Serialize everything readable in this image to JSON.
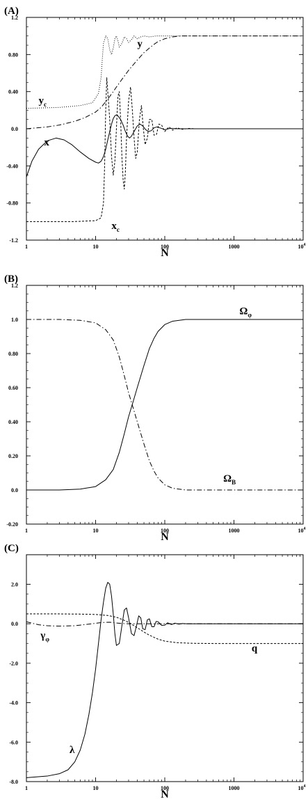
{
  "chart_data": [
    {
      "panel": "(A)",
      "type": "line",
      "xlabel": "N",
      "x_scale": "log",
      "xlim": [
        1,
        10000
      ],
      "ylim": [
        -1.2,
        1.2
      ],
      "x_ticks": [
        {
          "value": 1,
          "label": "1"
        },
        {
          "value": 10,
          "label": "10"
        },
        {
          "value": 100,
          "label": "100"
        },
        {
          "value": 1000,
          "label": "1000"
        },
        {
          "value": 10000,
          "label": "10",
          "sup": "4"
        }
      ],
      "y_ticks": [
        {
          "value": 1.2,
          "label": "1.2"
        },
        {
          "value": 0.8,
          "label": "0.80"
        },
        {
          "value": 0.4,
          "label": "0.40"
        },
        {
          "value": 0.0,
          "label": "0.0"
        },
        {
          "value": -0.4,
          "label": "-0.40"
        },
        {
          "value": -0.8,
          "label": "-0.80"
        },
        {
          "value": -1.2,
          "label": "-1.2"
        }
      ],
      "series": [
        {
          "name": "x",
          "style": "solid",
          "x": [
            1,
            1.2,
            1.5,
            2,
            2.7,
            3.5,
            4.5,
            6,
            8,
            10,
            11,
            12,
            13,
            14,
            15,
            16,
            17,
            18,
            19,
            20,
            21,
            23,
            25,
            27,
            29,
            31,
            33,
            36,
            40,
            44,
            48,
            53,
            58,
            64,
            70,
            77,
            85,
            100,
            120,
            150,
            200,
            300,
            500,
            1000,
            10000
          ],
          "y": [
            -0.52,
            -0.35,
            -0.22,
            -0.13,
            -0.1,
            -0.12,
            -0.17,
            -0.25,
            -0.32,
            -0.36,
            -0.37,
            -0.35,
            -0.3,
            -0.22,
            -0.12,
            -0.03,
            0.05,
            0.11,
            0.14,
            0.15,
            0.14,
            0.1,
            0.04,
            -0.03,
            -0.08,
            -0.1,
            -0.08,
            -0.03,
            0.03,
            0.05,
            0.03,
            -0.01,
            -0.03,
            -0.02,
            0.01,
            0.02,
            0.01,
            -0.01,
            0.005,
            0,
            0,
            0,
            0,
            0,
            0
          ]
        },
        {
          "name": "x_c",
          "style": "dashed",
          "x": [
            1,
            2,
            5,
            10,
            12,
            13,
            13.5,
            14,
            14.5,
            15,
            16,
            17,
            18,
            19,
            20,
            21,
            22,
            23,
            24,
            25,
            26,
            27,
            28,
            30,
            32,
            34,
            36,
            38,
            40,
            43,
            46,
            49,
            52,
            56,
            60,
            65,
            70,
            76,
            82,
            90,
            100,
            115,
            130,
            150,
            180,
            220,
            270,
            330,
            400,
            500,
            1000,
            10000
          ],
          "y": [
            -1.0,
            -1.0,
            -1.0,
            -0.99,
            -0.96,
            -0.8,
            -0.4,
            0.2,
            0.55,
            0.4,
            0.1,
            -0.3,
            -0.5,
            -0.35,
            0.0,
            0.35,
            0.4,
            0.1,
            -0.3,
            -0.55,
            -0.65,
            -0.45,
            -0.1,
            0.3,
            0.45,
            0.2,
            -0.1,
            -0.32,
            -0.25,
            0.1,
            0.25,
            0.0,
            -0.17,
            -0.1,
            0.1,
            0.1,
            -0.07,
            -0.06,
            0.05,
            0.04,
            -0.03,
            0.02,
            -0.015,
            0.01,
            -0.006,
            0.004,
            0,
            0,
            0,
            0,
            0,
            0
          ]
        },
        {
          "name": "y",
          "style": "dashdot",
          "x": [
            1,
            2,
            3,
            5,
            7,
            10,
            12,
            15,
            18,
            20,
            25,
            30,
            40,
            50,
            60,
            70,
            80,
            100,
            130,
            170,
            250,
            400,
            1000,
            10000
          ],
          "y": [
            0.0,
            0.02,
            0.04,
            0.08,
            0.12,
            0.18,
            0.23,
            0.32,
            0.4,
            0.45,
            0.55,
            0.63,
            0.74,
            0.82,
            0.87,
            0.91,
            0.94,
            0.97,
            0.99,
            1.0,
            1.0,
            1.0,
            1.0,
            1.0
          ]
        },
        {
          "name": "y_c",
          "style": "dotted",
          "x": [
            1,
            3,
            6,
            9,
            11,
            12,
            12.5,
            13,
            14,
            15,
            16,
            17,
            18,
            19,
            20,
            21,
            22,
            24,
            26,
            28,
            30,
            33,
            36,
            40,
            45,
            50,
            60,
            75,
            100,
            1000,
            10000
          ],
          "y": [
            0.22,
            0.23,
            0.25,
            0.28,
            0.38,
            0.55,
            0.75,
            0.92,
            1.0,
            0.97,
            0.85,
            0.8,
            0.87,
            0.97,
            1.0,
            0.95,
            0.88,
            0.92,
            0.99,
            0.97,
            0.93,
            0.96,
            1.0,
            0.97,
            0.99,
            1.0,
            0.99,
            1.0,
            1.0,
            1.0,
            1.0
          ]
        }
      ],
      "annotations": [
        {
          "text": "y",
          "sub": "c",
          "x": 1.5,
          "y": 0.27
        },
        {
          "text": "y",
          "sub": "",
          "x": 40,
          "y": 0.88
        },
        {
          "text": "x",
          "sub": "",
          "x": 1.8,
          "y": -0.18
        },
        {
          "text": "x",
          "sub": "c",
          "x": 17,
          "y": -1.08
        }
      ]
    },
    {
      "panel": "(B)",
      "type": "line",
      "xlabel": "N",
      "x_scale": "log",
      "xlim": [
        1,
        10000
      ],
      "ylim": [
        -0.2,
        1.2
      ],
      "x_ticks": [
        {
          "value": 1,
          "label": "1"
        },
        {
          "value": 10,
          "label": "10"
        },
        {
          "value": 100,
          "label": "100"
        },
        {
          "value": 1000,
          "label": "1000"
        },
        {
          "value": 10000,
          "label": "10",
          "sup": "4"
        }
      ],
      "y_ticks": [
        {
          "value": 1.2,
          "label": "1.2"
        },
        {
          "value": 1.0,
          "label": "1.0"
        },
        {
          "value": 0.8,
          "label": "0.80"
        },
        {
          "value": 0.6,
          "label": "0.60"
        },
        {
          "value": 0.4,
          "label": "0.40"
        },
        {
          "value": 0.2,
          "label": "0.20"
        },
        {
          "value": 0.0,
          "label": "0.0"
        },
        {
          "value": -0.2,
          "label": "-0.20"
        }
      ],
      "series": [
        {
          "name": "Ω_φ",
          "style": "solid",
          "x": [
            1,
            3,
            6,
            10,
            14,
            18,
            22,
            26,
            30,
            35,
            40,
            50,
            60,
            70,
            80,
            100,
            130,
            200,
            400,
            1000,
            10000
          ],
          "y": [
            0.0,
            0.0,
            0.005,
            0.02,
            0.06,
            0.12,
            0.22,
            0.33,
            0.43,
            0.52,
            0.6,
            0.73,
            0.83,
            0.89,
            0.93,
            0.97,
            0.99,
            1.0,
            1.0,
            1.0,
            1.0
          ]
        },
        {
          "name": "Ω_B",
          "style": "dashdot",
          "x": [
            1,
            3,
            6,
            10,
            14,
            18,
            22,
            26,
            30,
            35,
            40,
            50,
            60,
            70,
            80,
            100,
            130,
            200,
            400,
            1000,
            10000
          ],
          "y": [
            1.0,
            1.0,
            0.995,
            0.98,
            0.94,
            0.88,
            0.78,
            0.67,
            0.57,
            0.48,
            0.4,
            0.27,
            0.17,
            0.11,
            0.07,
            0.03,
            0.01,
            0.0,
            0.0,
            0.0,
            0.0
          ]
        }
      ],
      "annotations": [
        {
          "text": "Ω",
          "sub": "φ",
          "x": 1200,
          "y": 1.03
        },
        {
          "text": "Ω",
          "sub": "B",
          "x": 700,
          "y": 0.05
        }
      ]
    },
    {
      "panel": "(C)",
      "type": "line",
      "xlabel": "N",
      "x_scale": "log",
      "xlim": [
        1,
        10000
      ],
      "ylim": [
        -8.0,
        3.5
      ],
      "x_ticks": [
        {
          "value": 1,
          "label": "1"
        },
        {
          "value": 10,
          "label": "10"
        },
        {
          "value": 100,
          "label": "100"
        },
        {
          "value": 1000,
          "label": "1000"
        },
        {
          "value": 10000,
          "label": "10",
          "sup": "4"
        }
      ],
      "y_ticks": [
        {
          "value": 2.0,
          "label": "2.0"
        },
        {
          "value": 0.0,
          "label": "0.0"
        },
        {
          "value": -2.0,
          "label": "-2.0"
        },
        {
          "value": -4.0,
          "label": "-4.0"
        },
        {
          "value": -6.0,
          "label": "-6.0"
        },
        {
          "value": -8.0,
          "label": "-8.0"
        }
      ],
      "series": [
        {
          "name": "λ",
          "style": "solid",
          "x": [
            1,
            2,
            3,
            4,
            5,
            6,
            7,
            8,
            9,
            10,
            11,
            12,
            13,
            14,
            15,
            16,
            17,
            18,
            19,
            20,
            22,
            24,
            26,
            28,
            30,
            33,
            36,
            39,
            42,
            45,
            48,
            52,
            56,
            60,
            65,
            70,
            75,
            80,
            90,
            100,
            110,
            125,
            140,
            160,
            180,
            210,
            250,
            300,
            400,
            1000,
            10000
          ],
          "y": [
            -7.8,
            -7.72,
            -7.6,
            -7.4,
            -7.0,
            -6.4,
            -5.6,
            -4.6,
            -3.5,
            -2.3,
            -1.0,
            0.2,
            1.1,
            1.8,
            2.1,
            2.0,
            1.4,
            0.5,
            -0.5,
            -1.1,
            -1.0,
            -0.1,
            0.7,
            0.8,
            0.3,
            -0.5,
            -0.6,
            -0.1,
            0.4,
            0.3,
            -0.25,
            -0.3,
            0.2,
            0.25,
            -0.15,
            -0.15,
            0.12,
            0.1,
            -0.08,
            -0.07,
            0.05,
            -0.04,
            0.03,
            -0.02,
            0.01,
            0,
            0,
            0,
            0,
            0,
            0
          ]
        },
        {
          "name": "q",
          "style": "dashed",
          "x": [
            1,
            3,
            6,
            10,
            15,
            20,
            25,
            30,
            40,
            50,
            60,
            80,
            100,
            150,
            250,
            500,
            1000,
            10000
          ],
          "y": [
            0.5,
            0.5,
            0.49,
            0.47,
            0.42,
            0.33,
            0.2,
            0.07,
            -0.2,
            -0.42,
            -0.58,
            -0.78,
            -0.88,
            -0.96,
            -0.99,
            -1.0,
            -1.0,
            -1.0
          ]
        },
        {
          "name": "γ_φ",
          "style": "dashdot",
          "x": [
            1,
            1.5,
            2,
            3,
            5,
            8,
            12,
            16,
            20,
            25,
            30,
            40,
            60,
            100,
            1000,
            10000
          ],
          "y": [
            0.1,
            -0.05,
            -0.1,
            -0.12,
            -0.1,
            -0.02,
            0.06,
            0.08,
            0.04,
            0.01,
            0.0,
            0.0,
            0.0,
            0.0,
            0.0,
            0.0
          ]
        }
      ],
      "annotations": [
        {
          "text": "γ",
          "sub": "φ",
          "x": 1.6,
          "y": -0.75
        },
        {
          "text": "q",
          "sub": "",
          "x": 1800,
          "y": -1.4
        },
        {
          "text": "λ",
          "sub": "",
          "x": 4.2,
          "y": -6.55
        }
      ]
    }
  ]
}
